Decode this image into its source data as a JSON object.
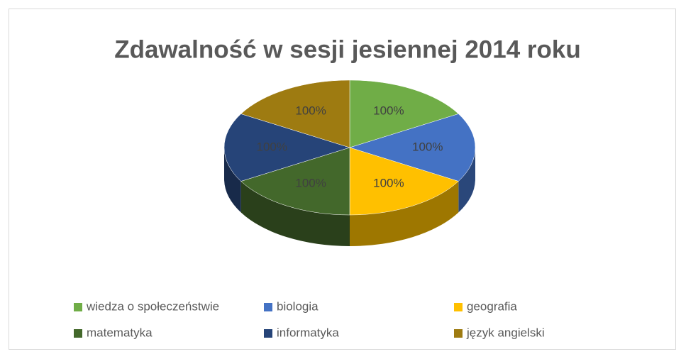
{
  "chart_data": {
    "type": "pie",
    "title": "Zdawalność w sesji jesiennej 2014 roku",
    "categories": [
      "wiedza o społeczeństwie",
      "biologia",
      "geografia",
      "matematyka",
      "informatyka",
      "język angielski"
    ],
    "values": [
      100,
      100,
      100,
      100,
      100,
      100
    ],
    "value_labels": [
      "100%",
      "100%",
      "100%",
      "100%",
      "100%",
      "100%"
    ],
    "colors": [
      "#70ad47",
      "#4472c4",
      "#ffc000",
      "#43682b",
      "#264478",
      "#9e7b11"
    ],
    "legend": "bottom"
  }
}
